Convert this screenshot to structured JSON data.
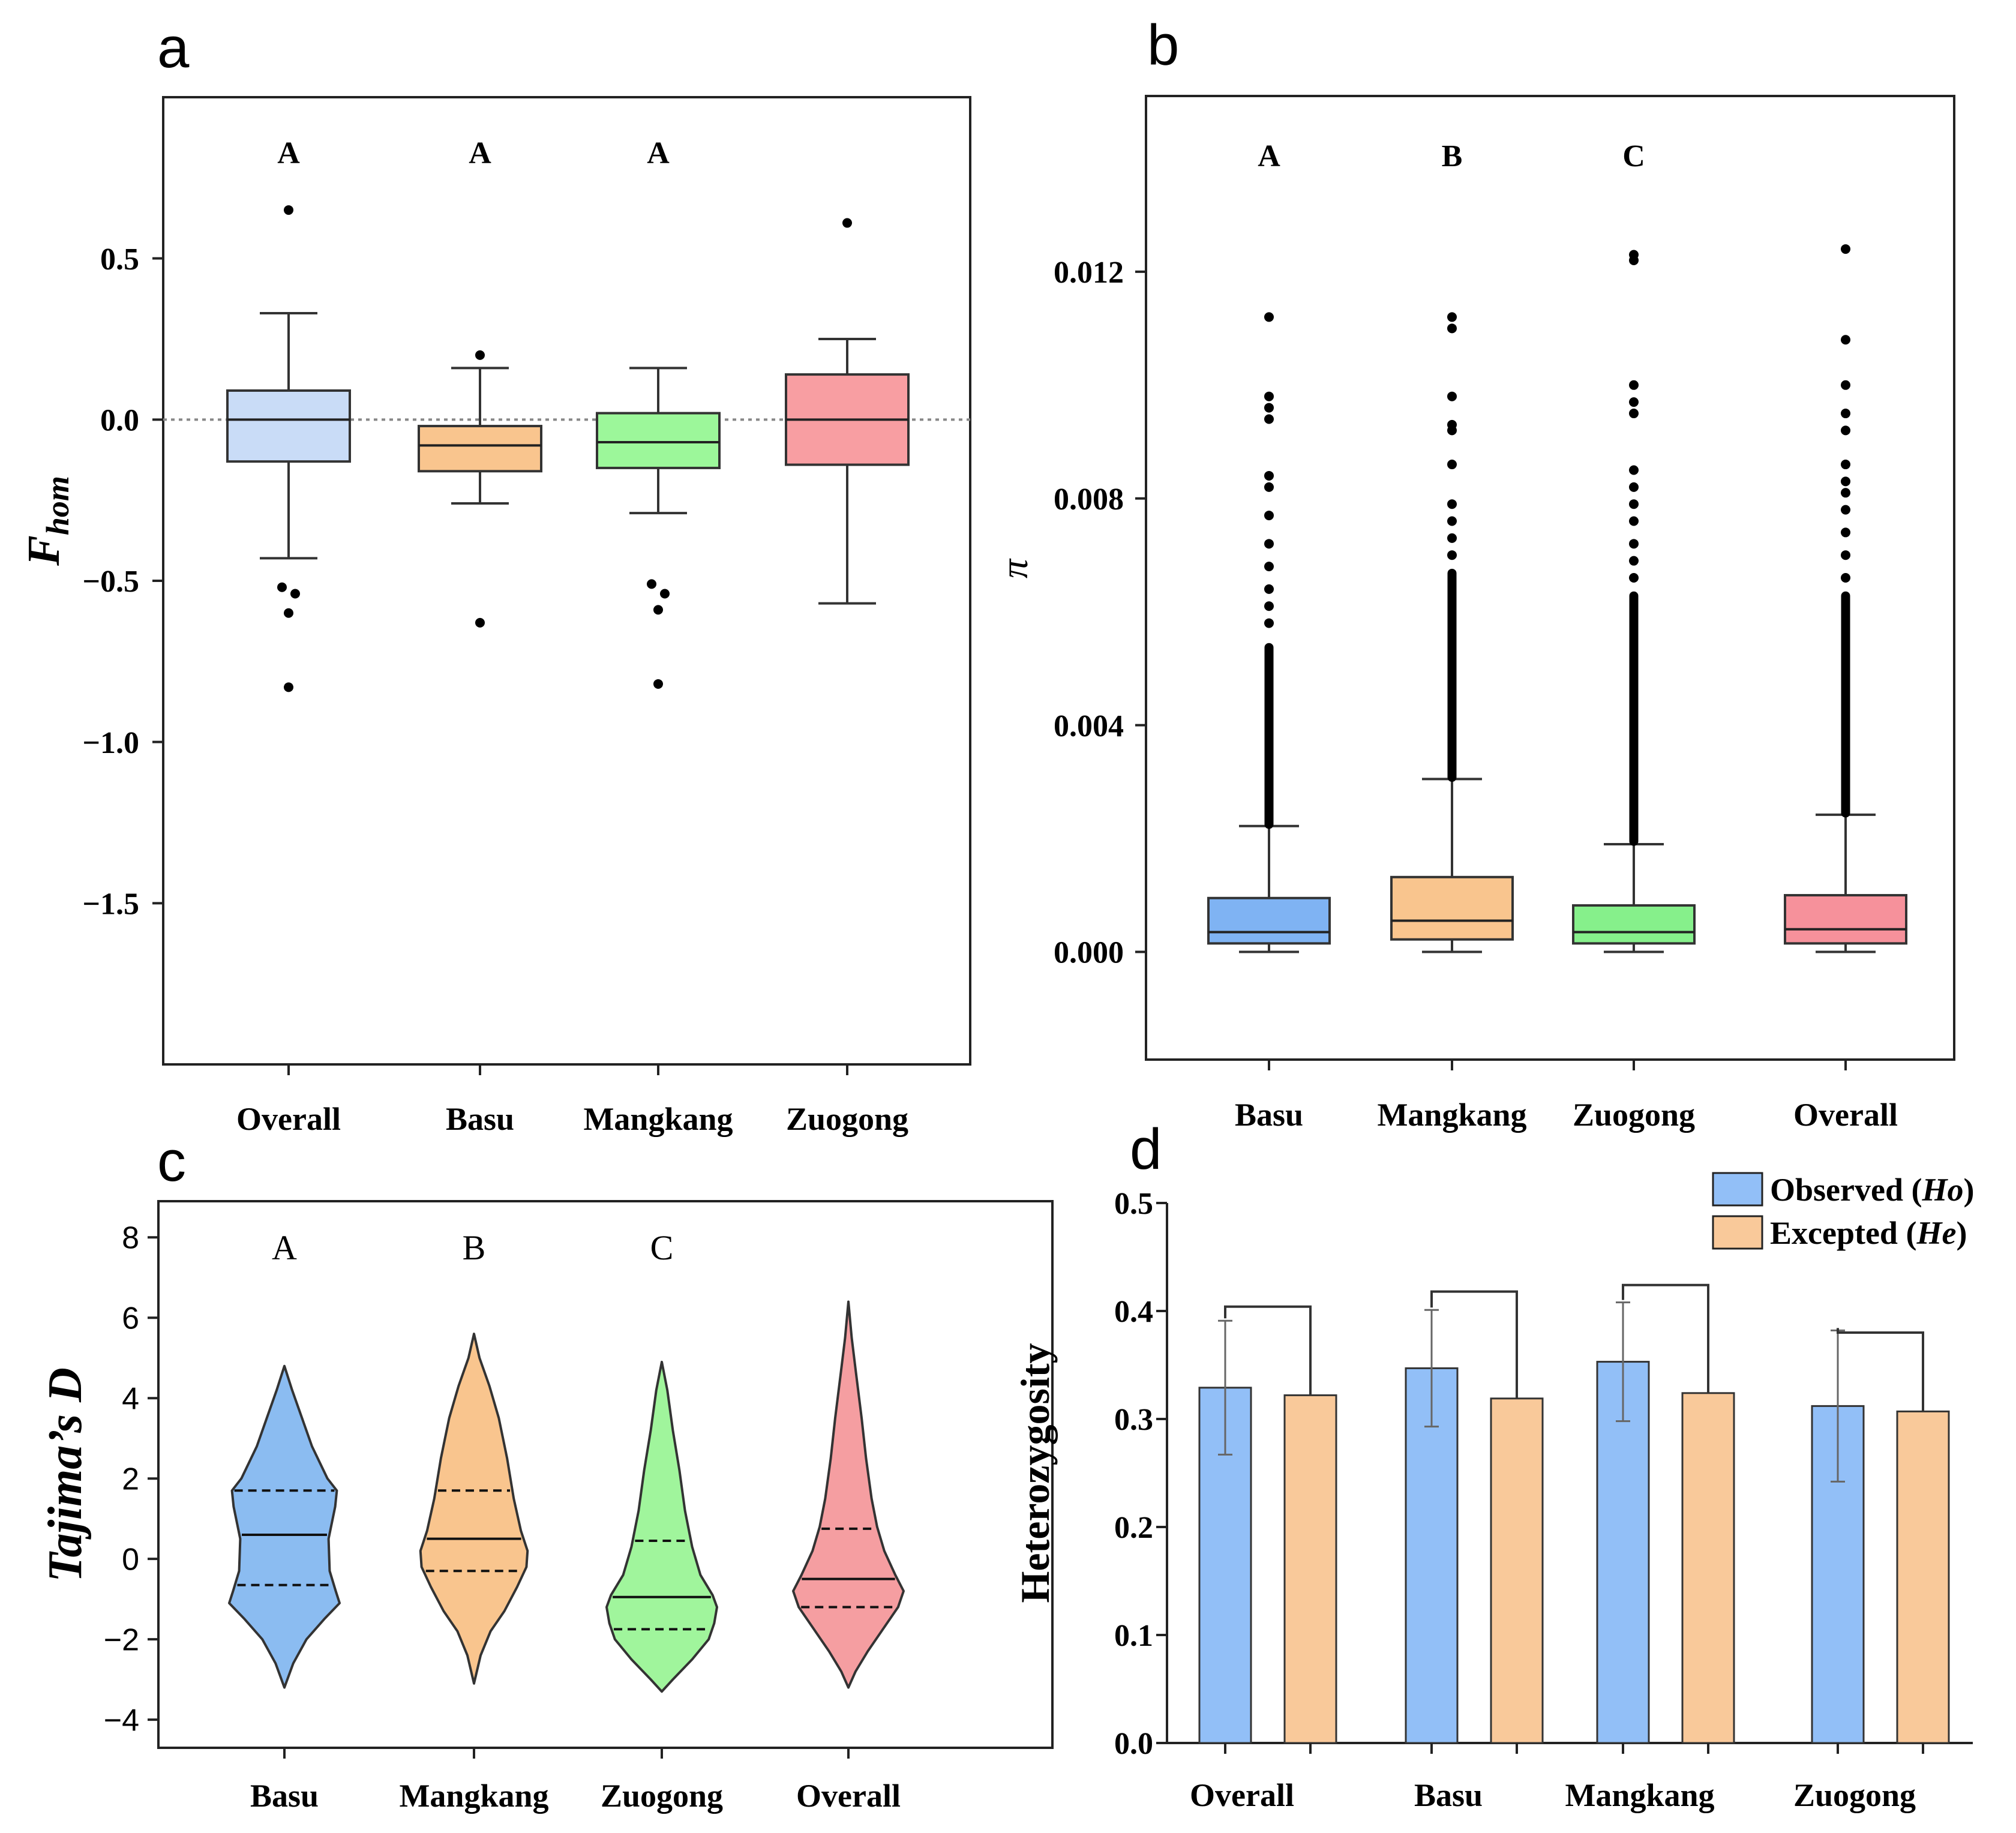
{
  "figure": {
    "panels": [
      "a",
      "b",
      "c",
      "d"
    ]
  },
  "chart_data": [
    {
      "panel": "a",
      "type": "box",
      "ylabel": "F",
      "ylabel_sub": "hom",
      "yticks": [
        0.5,
        0.0,
        -0.5,
        -1.0,
        -1.5
      ],
      "ytick_labels": [
        "0.5",
        "0.0",
        "−0.5",
        "−1.0",
        "−1.5"
      ],
      "ylim": [
        -2.0,
        1.0
      ],
      "reference_line": 0.0,
      "categories": [
        "Overall",
        "Basu",
        "Mangkang",
        "Zuogong"
      ],
      "letters": [
        "A",
        "A",
        "A",
        ""
      ],
      "colors": [
        "#c9dcf7",
        "#f9c58e",
        "#9cf79a",
        "#f89ea2"
      ],
      "boxes": [
        {
          "wlo": -0.43,
          "q1": -0.13,
          "med": 0.0,
          "q3": 0.09,
          "whi": 0.33,
          "outliers": [
            0.65,
            -0.52,
            -0.54,
            -0.6,
            -0.83
          ]
        },
        {
          "wlo": -0.26,
          "q1": -0.16,
          "med": -0.08,
          "q3": -0.02,
          "whi": 0.16,
          "outliers": [
            0.2,
            -0.63
          ]
        },
        {
          "wlo": -0.29,
          "q1": -0.15,
          "med": -0.07,
          "q3": 0.02,
          "whi": 0.16,
          "outliers": [
            -0.51,
            -0.54,
            -0.59,
            -0.82
          ]
        },
        {
          "wlo": -0.57,
          "q1": -0.14,
          "med": 0.0,
          "q3": 0.14,
          "whi": 0.25,
          "outliers": [
            0.61
          ]
        }
      ]
    },
    {
      "panel": "b",
      "type": "box",
      "ylabel": "π",
      "yticks": [
        0.012,
        0.008,
        0.004,
        0.0
      ],
      "ytick_labels": [
        "0.012",
        "0.008",
        "0.004",
        "0.000"
      ],
      "ylim": [
        -0.0019,
        0.0151
      ],
      "categories": [
        "Basu",
        "Mangkang",
        "Zuogong",
        "Overall"
      ],
      "letters": [
        "A",
        "B",
        "C",
        ""
      ],
      "colors": [
        "#7fb3f3",
        "#f9c58e",
        "#86f08b",
        "#f6919b"
      ],
      "boxes": [
        {
          "wlo": 0.0,
          "q1": 0.00015,
          "med": 0.00035,
          "q3": 0.00095,
          "whi": 0.00222,
          "outliers_min": 0.00225,
          "outliers_max": 0.00537,
          "outliers": [
            0.0058,
            0.0061,
            0.0064,
            0.0068,
            0.0072,
            0.0077,
            0.0082,
            0.0084,
            0.0094,
            0.0096,
            0.0098,
            0.0112
          ]
        },
        {
          "wlo": 0.0,
          "q1": 0.00022,
          "med": 0.00055,
          "q3": 0.00132,
          "whi": 0.00305,
          "outliers_min": 0.00308,
          "outliers_max": 0.00668,
          "outliers": [
            0.007,
            0.0073,
            0.0076,
            0.0079,
            0.0086,
            0.0092,
            0.0093,
            0.0098,
            0.011,
            0.0112
          ]
        },
        {
          "wlo": 0.0,
          "q1": 0.00015,
          "med": 0.00035,
          "q3": 0.00082,
          "whi": 0.0019,
          "outliers_min": 0.00195,
          "outliers_max": 0.00628,
          "outliers": [
            0.0066,
            0.0069,
            0.0072,
            0.0076,
            0.0079,
            0.0082,
            0.0085,
            0.0095,
            0.0097,
            0.01,
            0.0122,
            0.0123
          ]
        },
        {
          "wlo": 0.0,
          "q1": 0.00015,
          "med": 0.0004,
          "q3": 0.001,
          "whi": 0.00242,
          "outliers_min": 0.00245,
          "outliers_max": 0.00628,
          "outliers": [
            0.0066,
            0.007,
            0.0074,
            0.0078,
            0.0081,
            0.0083,
            0.0086,
            0.0092,
            0.0095,
            0.01,
            0.0108,
            0.0124
          ]
        }
      ]
    },
    {
      "panel": "c",
      "type": "violin",
      "ylabel": "Tajima’s D",
      "yticks": [
        8,
        6,
        4,
        2,
        0,
        -2,
        -4
      ],
      "ytick_labels": [
        "8",
        "6",
        "4",
        "2",
        "0",
        "−2",
        "−4"
      ],
      "ylim": [
        -4.7,
        8.9
      ],
      "categories": [
        "Basu",
        "Mangkang",
        "Zuogong",
        "Overall"
      ],
      "letters": [
        "A",
        "B",
        "C",
        ""
      ],
      "colors": [
        "#8bbcf1",
        "#f9c58e",
        "#a0f59c",
        "#f59ea1"
      ],
      "violins": [
        {
          "q1": -0.65,
          "med": 0.6,
          "q3": 1.7,
          "profile": [
            [
              4.8,
              0
            ],
            [
              4.2,
              0.14
            ],
            [
              3.5,
              0.32
            ],
            [
              2.8,
              0.5
            ],
            [
              2.0,
              0.78
            ],
            [
              1.7,
              0.95
            ],
            [
              1.3,
              0.92
            ],
            [
              0.5,
              0.8
            ],
            [
              -0.3,
              0.82
            ],
            [
              -0.8,
              0.93
            ],
            [
              -1.1,
              1.0
            ],
            [
              -1.5,
              0.72
            ],
            [
              -2.0,
              0.4
            ],
            [
              -2.6,
              0.16
            ],
            [
              -3.2,
              0
            ]
          ]
        },
        {
          "q1": -0.3,
          "med": 0.5,
          "q3": 1.7,
          "profile": [
            [
              5.6,
              0
            ],
            [
              5.0,
              0.1
            ],
            [
              4.3,
              0.28
            ],
            [
              3.5,
              0.45
            ],
            [
              2.5,
              0.6
            ],
            [
              1.5,
              0.72
            ],
            [
              0.7,
              0.85
            ],
            [
              0.2,
              0.97
            ],
            [
              -0.2,
              0.95
            ],
            [
              -0.7,
              0.78
            ],
            [
              -1.3,
              0.55
            ],
            [
              -1.8,
              0.3
            ],
            [
              -2.4,
              0.12
            ],
            [
              -3.1,
              0
            ]
          ]
        },
        {
          "q1": -1.75,
          "med": -0.95,
          "q3": 0.45,
          "profile": [
            [
              4.9,
              0
            ],
            [
              4.2,
              0.1
            ],
            [
              3.2,
              0.2
            ],
            [
              2.2,
              0.32
            ],
            [
              1.2,
              0.42
            ],
            [
              0.3,
              0.55
            ],
            [
              -0.4,
              0.7
            ],
            [
              -0.9,
              0.92
            ],
            [
              -1.2,
              1.0
            ],
            [
              -1.6,
              0.95
            ],
            [
              -2.0,
              0.85
            ],
            [
              -2.5,
              0.55
            ],
            [
              -3.0,
              0.2
            ],
            [
              -3.3,
              0
            ]
          ]
        },
        {
          "q1": -1.2,
          "med": -0.5,
          "q3": 0.75,
          "profile": [
            [
              6.4,
              0
            ],
            [
              5.5,
              0.06
            ],
            [
              4.6,
              0.14
            ],
            [
              3.5,
              0.24
            ],
            [
              2.5,
              0.32
            ],
            [
              1.5,
              0.42
            ],
            [
              0.8,
              0.52
            ],
            [
              0.2,
              0.65
            ],
            [
              -0.4,
              0.85
            ],
            [
              -0.8,
              1.0
            ],
            [
              -1.2,
              0.9
            ],
            [
              -1.7,
              0.65
            ],
            [
              -2.3,
              0.35
            ],
            [
              -2.8,
              0.13
            ],
            [
              -3.2,
              0
            ]
          ]
        }
      ]
    },
    {
      "panel": "d",
      "type": "bar",
      "ylabel": "Heterozygosity",
      "yticks": [
        0.0,
        0.1,
        0.2,
        0.3,
        0.4,
        0.5
      ],
      "ytick_labels": [
        "0.0",
        "0.1",
        "0.2",
        "0.3",
        "0.4",
        "0.5"
      ],
      "ylim": [
        0.0,
        0.5
      ],
      "categories": [
        "Overall",
        "Basu",
        "Mangkang",
        "Zuogong"
      ],
      "series": [
        {
          "name": "Observed",
          "name_italic": "Ho",
          "color": "#92bff7",
          "values": [
            0.329,
            0.347,
            0.353,
            0.312
          ],
          "errors": [
            0.062,
            0.054,
            0.055,
            0.07
          ]
        },
        {
          "name": "Excepted",
          "name_italic": "He",
          "color": "#f9c99a",
          "values": [
            0.322,
            0.319,
            0.324,
            0.307
          ],
          "errors": [
            0.0,
            0.0,
            0.0,
            0.0
          ]
        }
      ],
      "bracket_heights": [
        0.404,
        0.418,
        0.424,
        0.38
      ]
    }
  ]
}
